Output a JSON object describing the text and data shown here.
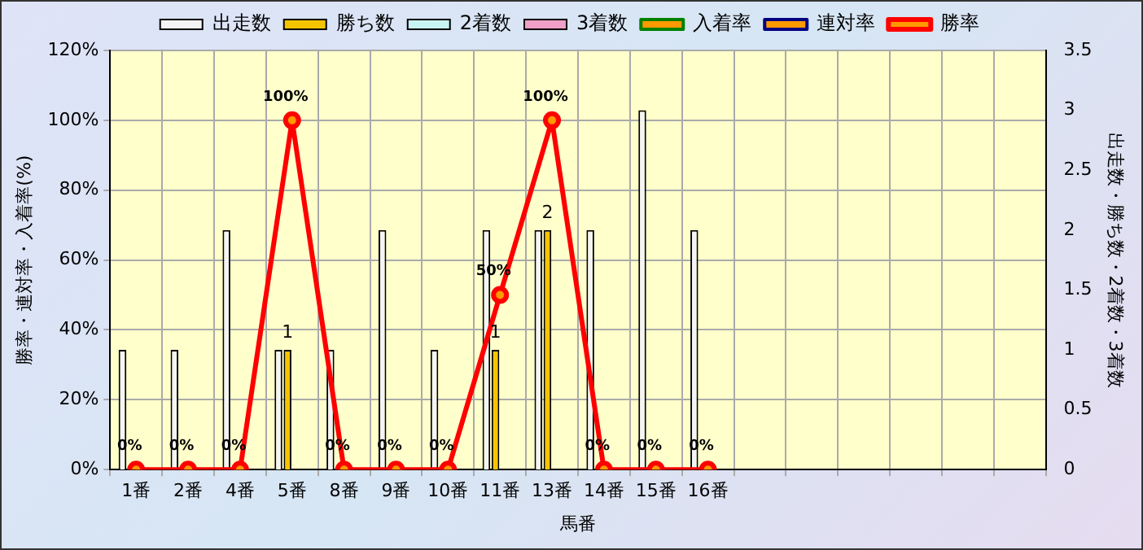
{
  "chart_data": {
    "type": "bar",
    "xlabel": "馬番",
    "ylabel": "勝率・連対率・入着率(%)",
    "y2label": "出走数・勝ち数・2着数・3着数",
    "categories": [
      "1番",
      "2番",
      "4番",
      "5番",
      "8番",
      "9番",
      "10番",
      "11番",
      "13番",
      "14番",
      "15番",
      "16番",
      null,
      null,
      null,
      null,
      null,
      null
    ],
    "series": [
      {
        "name": "出走数",
        "axis": "y2",
        "color": "#f4f4f4",
        "values": [
          1,
          1,
          2,
          1,
          1,
          2,
          1,
          2,
          2,
          2,
          3,
          2,
          null,
          null,
          null,
          null,
          null,
          null
        ]
      },
      {
        "name": "勝ち数",
        "axis": "y2",
        "color": "#f5c400",
        "values": [
          0,
          0,
          0,
          1,
          0,
          0,
          0,
          1,
          2,
          0,
          0,
          0,
          null,
          null,
          null,
          null,
          null,
          null
        ],
        "value_labels": [
          null,
          null,
          null,
          "1",
          null,
          null,
          null,
          "1",
          "2",
          null,
          null,
          null,
          null,
          null,
          null,
          null,
          null,
          null
        ]
      },
      {
        "name": "2着数",
        "axis": "y2",
        "color": "#c8f4f4",
        "values": [
          0,
          0,
          0,
          0,
          0,
          0,
          0,
          0,
          0,
          0,
          0,
          0,
          null,
          null,
          null,
          null,
          null,
          null
        ]
      },
      {
        "name": "3着数",
        "axis": "y2",
        "color": "#f0a0c8",
        "values": [
          0,
          0,
          0,
          0,
          0,
          0,
          0,
          0,
          0,
          0,
          0,
          0,
          null,
          null,
          null,
          null,
          null,
          null
        ]
      },
      {
        "name": "入着率",
        "type": "line",
        "axis": "y",
        "color": "#008000",
        "marker": "triangle",
        "values": [
          null,
          null,
          null,
          null,
          null,
          null,
          null,
          null,
          null,
          null,
          null,
          null,
          null,
          null,
          null,
          null,
          null,
          null
        ]
      },
      {
        "name": "連対率",
        "type": "line",
        "axis": "y",
        "color": "#000080",
        "marker": "diamond",
        "values": [
          null,
          null,
          null,
          null,
          null,
          null,
          null,
          null,
          null,
          null,
          null,
          null,
          null,
          null,
          null,
          null,
          null,
          null
        ]
      },
      {
        "name": "勝率",
        "type": "line",
        "axis": "y",
        "color": "#ff0000",
        "marker": "circle",
        "values": [
          0,
          0,
          0,
          100,
          0,
          0,
          0,
          50,
          100,
          0,
          0,
          0,
          null,
          null,
          null,
          null,
          null,
          null
        ],
        "value_labels": [
          "0%",
          "0%",
          "0%",
          "100%",
          "0%",
          "0%",
          "0%",
          "50%",
          "100%",
          "0%",
          "0%",
          "0%",
          null,
          null,
          null,
          null,
          null,
          null
        ]
      }
    ],
    "ylim": [
      0,
      120
    ],
    "yticks": [
      {
        "value": 0,
        "label": "0%"
      },
      {
        "value": 20,
        "label": "20%"
      },
      {
        "value": 40,
        "label": "40%"
      },
      {
        "value": 60,
        "label": "60%"
      },
      {
        "value": 80,
        "label": "80%"
      },
      {
        "value": 100,
        "label": "100%"
      },
      {
        "value": 120,
        "label": "120%"
      }
    ],
    "y2lim": [
      0,
      3.5
    ],
    "y2ticks": [
      0,
      0.5,
      1,
      1.5,
      2,
      2.5,
      3,
      3.5
    ],
    "grid": true,
    "legend": "top",
    "line_style": "solid"
  }
}
